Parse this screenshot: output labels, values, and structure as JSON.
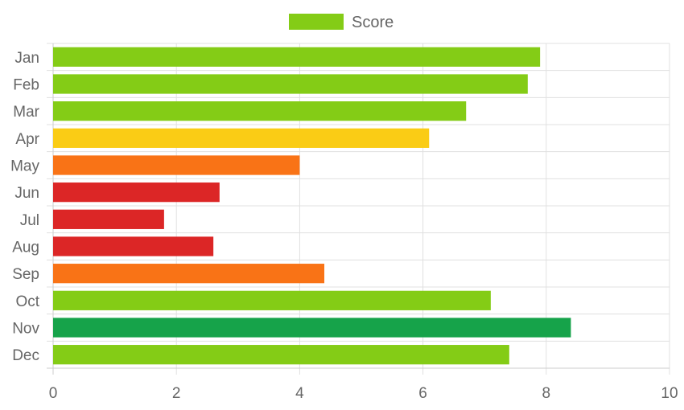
{
  "chart_data": {
    "type": "bar",
    "orientation": "horizontal",
    "categories": [
      "Jan",
      "Feb",
      "Mar",
      "Apr",
      "May",
      "Jun",
      "Jul",
      "Aug",
      "Sep",
      "Oct",
      "Nov",
      "Dec"
    ],
    "series": [
      {
        "name": "Score",
        "values": [
          7.9,
          7.7,
          6.7,
          6.1,
          4.0,
          2.7,
          1.8,
          2.6,
          4.4,
          7.1,
          8.4,
          7.4
        ],
        "colors": [
          "#84cc16",
          "#84cc16",
          "#84cc16",
          "#facc15",
          "#f97316",
          "#dc2626",
          "#dc2626",
          "#dc2626",
          "#f97316",
          "#84cc16",
          "#16a34a",
          "#84cc16"
        ]
      }
    ],
    "legend": {
      "placement": "top-center",
      "entries": [
        {
          "label": "Score",
          "color": "#84cc16"
        }
      ]
    },
    "xlim": [
      0,
      10
    ],
    "x_ticks": [
      0,
      2,
      4,
      6,
      8,
      10
    ],
    "grid": true
  }
}
